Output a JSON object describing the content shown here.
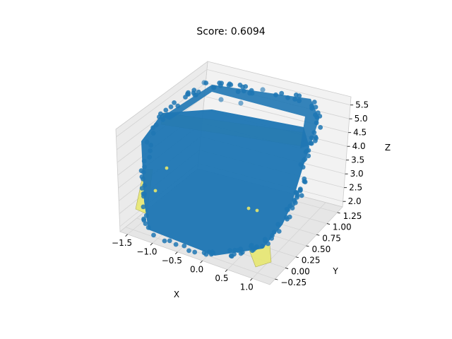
{
  "chart_data": {
    "type": "scatter",
    "projection": "3d",
    "title": "Score: 0.6094",
    "xlabel": "X",
    "ylabel": "Y",
    "zlabel": "Z",
    "x_ticks": [
      "−1.5",
      "−1.0",
      "−0.5",
      "0.0",
      "0.5",
      "1.0"
    ],
    "y_ticks": [
      "−0.25",
      "0.00",
      "0.25",
      "0.50",
      "0.75",
      "1.00",
      "1.25"
    ],
    "z_ticks": [
      "2.0",
      "2.5",
      "3.0",
      "3.5",
      "4.0",
      "4.5",
      "5.0",
      "5.5"
    ],
    "xlim": [
      -1.6,
      1.3
    ],
    "ylim": [
      -0.35,
      1.35
    ],
    "zlim": [
      1.9,
      5.6
    ],
    "grid": true,
    "series": [
      {
        "kind": "point_cloud",
        "color": "#1f77b4"
      },
      {
        "kind": "fitted_surface",
        "color": "#d4d44a"
      }
    ]
  }
}
